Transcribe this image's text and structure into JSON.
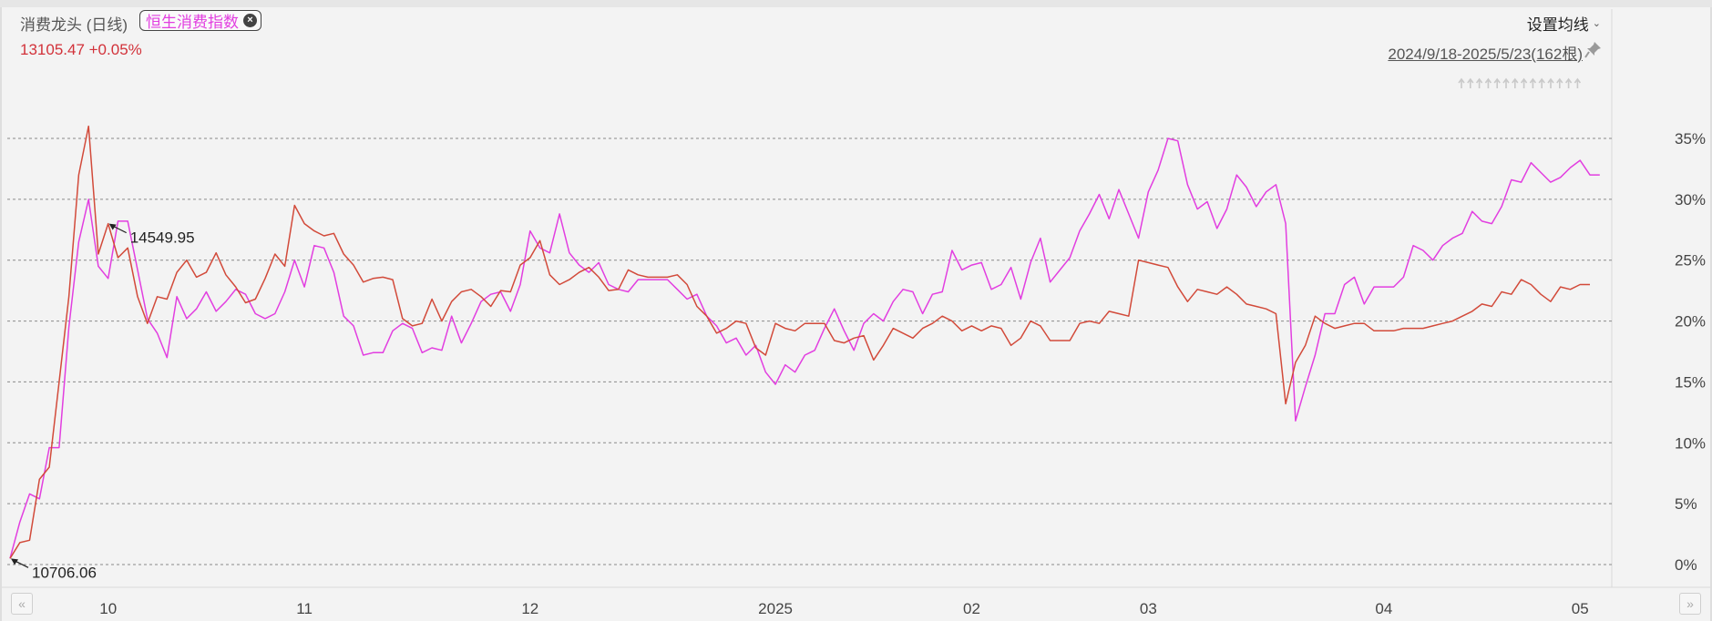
{
  "header": {
    "series_name": "消费龙头 (日线)",
    "compare_tag": "恒生消费指数",
    "price_text": "13105.47 +0.05%",
    "settings_label": "设置均线",
    "range_text": "2024/9/18-2025/5/23(162根)"
  },
  "icons": {
    "close": "close-circle-icon",
    "settings_chevron": "chevron-down-icon",
    "pin": "pin-icon",
    "scroll_left": "double-chevron-left-icon",
    "scroll_right": "double-chevron-right-icon"
  },
  "colors": {
    "series_main": "#d24a3a",
    "series_compare": "#e23ee0",
    "grid": "#8a8a8a"
  },
  "chart_data": {
    "type": "line",
    "ylim": [
      0,
      35
    ],
    "yticks": [
      "35%",
      "30%",
      "25%",
      "20%",
      "15%",
      "10%",
      "5%",
      "0%"
    ],
    "yticks_values": [
      35,
      30,
      25,
      20,
      15,
      10,
      5,
      0
    ],
    "xticks": [
      "10",
      "11",
      "12",
      "2025",
      "02",
      "03",
      "04",
      "05"
    ],
    "xtick_index": [
      10,
      30,
      53,
      78,
      98,
      116,
      140,
      160
    ],
    "annotations": [
      {
        "text": "14549.95",
        "series": 0,
        "index": 10
      },
      {
        "text": "10706.06",
        "series": 0,
        "index": 0
      }
    ],
    "series": [
      {
        "values": [
          0.5,
          1.8,
          2.0,
          7.0,
          8.0,
          15.0,
          22.0,
          32.0,
          36.0,
          25.5,
          28.0,
          25.2,
          26.0,
          22.0,
          19.8,
          22.0,
          21.8,
          24.0,
          25.0,
          23.6,
          24.0,
          25.6,
          23.8,
          22.8,
          21.5,
          21.8,
          23.5,
          25.5,
          24.5,
          29.5,
          28.0,
          27.4,
          27.0,
          27.2,
          25.5,
          24.6,
          23.2,
          23.5,
          23.6,
          23.4,
          20.2,
          19.6,
          19.8,
          21.8,
          20.0,
          21.6,
          22.4,
          22.6,
          22.0,
          21.2,
          22.5,
          22.4,
          24.6,
          25.2,
          26.6,
          23.8,
          23.0,
          23.4,
          24.0,
          24.4,
          23.6,
          22.5,
          22.6,
          24.2,
          23.8,
          23.6,
          23.6,
          23.6,
          23.8,
          23.0,
          21.2,
          20.4,
          19.0,
          19.4,
          20.0,
          19.8,
          17.8,
          17.2,
          19.8,
          19.4,
          19.2,
          19.8,
          19.8,
          19.8,
          18.4,
          18.2,
          18.6,
          18.8,
          16.8,
          18.0,
          19.4,
          19.0,
          18.6,
          19.4,
          19.8,
          20.4,
          20.0,
          19.2,
          19.6,
          19.2,
          19.6,
          19.4,
          18.0,
          18.6,
          20.0,
          19.6,
          18.4,
          18.4,
          18.4,
          19.8,
          20.0,
          19.8,
          20.8,
          20.6,
          20.4,
          25.0,
          24.8,
          24.6,
          24.4,
          22.8,
          21.6,
          22.6,
          22.4,
          22.2,
          22.8,
          22.2,
          21.4,
          21.2,
          21.0,
          20.6,
          13.2,
          16.6,
          18.0,
          20.4,
          19.8,
          19.4,
          19.6,
          19.8,
          19.8,
          19.2,
          19.2,
          19.2,
          19.4,
          19.4,
          19.4,
          19.6,
          19.8,
          20.0,
          20.4,
          20.8,
          21.4,
          21.2,
          22.4,
          22.2,
          23.4,
          23.0,
          22.2,
          21.6,
          22.8,
          22.6,
          23.0,
          23.0
        ]
      },
      {
        "values": [
          0.5,
          3.5,
          5.8,
          5.4,
          9.6,
          9.6,
          19.5,
          26.5,
          30.0,
          24.5,
          23.5,
          28.2,
          28.2,
          24.2,
          20.2,
          19.0,
          17.0,
          22.0,
          20.2,
          21.0,
          22.4,
          20.8,
          21.6,
          22.6,
          22.2,
          20.6,
          20.2,
          20.6,
          22.4,
          25.0,
          22.8,
          26.2,
          26.0,
          24.0,
          20.4,
          19.6,
          17.2,
          17.4,
          17.4,
          19.2,
          19.8,
          19.4,
          17.4,
          17.8,
          17.6,
          20.4,
          18.2,
          19.8,
          21.6,
          22.2,
          22.4,
          20.8,
          23.0,
          27.4,
          26.0,
          25.6,
          28.8,
          25.6,
          24.6,
          24.0,
          24.8,
          23.0,
          22.6,
          22.4,
          23.4,
          23.4,
          23.4,
          23.4,
          22.6,
          21.8,
          22.2,
          20.4,
          19.6,
          18.2,
          18.6,
          17.2,
          18.0,
          15.8,
          14.8,
          16.4,
          15.8,
          17.2,
          17.6,
          19.4,
          21.0,
          19.2,
          17.6,
          19.8,
          20.6,
          20.0,
          21.6,
          22.6,
          22.4,
          20.6,
          22.2,
          22.4,
          25.8,
          24.2,
          24.6,
          24.8,
          22.6,
          23.0,
          24.4,
          21.8,
          24.8,
          26.8,
          23.2,
          24.2,
          25.2,
          27.4,
          28.8,
          30.4,
          28.4,
          30.8,
          28.8,
          26.8,
          30.6,
          32.4,
          35.0,
          34.8,
          31.2,
          29.2,
          29.8,
          27.6,
          29.2,
          32.0,
          31.0,
          29.4,
          30.6,
          31.2,
          28.0,
          11.8,
          14.6,
          17.2,
          20.6,
          20.6,
          23.0,
          23.6,
          21.4,
          22.8,
          22.8,
          22.8,
          23.6,
          26.2,
          25.8,
          25.0,
          26.2,
          26.8,
          27.2,
          29.0,
          28.2,
          28.0,
          29.4,
          31.6,
          31.4,
          33.0,
          32.2,
          31.4,
          31.8,
          32.6,
          33.2,
          32.0,
          32.0
        ]
      }
    ]
  }
}
